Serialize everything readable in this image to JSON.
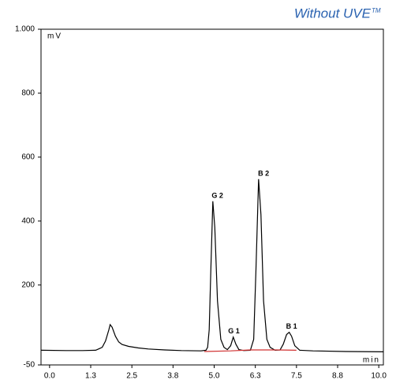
{
  "chart_data": {
    "type": "line",
    "title": "Without UVE",
    "title_mark": "TM",
    "y_label": "mV",
    "x_label": "min",
    "xlim": [
      -0.26,
      10.14
    ],
    "ylim": [
      -50,
      1000
    ],
    "xticks": [
      {
        "value": 0,
        "label": "0.0"
      },
      {
        "value": 1.25,
        "label": "1.3"
      },
      {
        "value": 2.5,
        "label": "2.5"
      },
      {
        "value": 3.75,
        "label": "3.8"
      },
      {
        "value": 5,
        "label": "5.0"
      },
      {
        "value": 6.25,
        "label": "6.3"
      },
      {
        "value": 7.5,
        "label": "7.5"
      },
      {
        "value": 8.75,
        "label": "8.8"
      },
      {
        "value": 10,
        "label": "10.0"
      }
    ],
    "yticks": [
      -50,
      200,
      400,
      600,
      800,
      {
        "value": 1000,
        "label": "1.000"
      }
    ],
    "series": [
      {
        "color": "#000000",
        "x": [
          -0.26,
          0.5,
          1.0,
          1.4,
          1.6,
          1.7,
          1.8,
          1.84,
          1.9,
          2.0,
          2.1,
          2.2,
          2.4,
          2.7,
          3.0,
          3.5,
          4.0,
          4.6,
          4.75,
          4.8,
          4.85,
          4.9,
          4.96,
          5.02,
          5.1,
          5.2,
          5.3,
          5.4,
          5.5,
          5.58,
          5.66,
          5.75,
          5.9,
          6.1,
          6.2,
          6.27,
          6.35,
          6.42,
          6.5,
          6.6,
          6.7,
          6.85,
          7.0,
          7.1,
          7.2,
          7.28,
          7.35,
          7.45,
          7.6,
          8.0,
          9.0,
          10.14
        ],
        "values": [
          -4,
          -5,
          -5,
          -4,
          5,
          25,
          60,
          76,
          68,
          40,
          22,
          14,
          8,
          3,
          0,
          -3,
          -5,
          -6,
          -4,
          5,
          60,
          250,
          462,
          380,
          150,
          30,
          5,
          -2,
          10,
          37,
          15,
          -2,
          -5,
          -4,
          30,
          250,
          531,
          420,
          150,
          30,
          5,
          -4,
          -3,
          15,
          45,
          52,
          40,
          10,
          -4,
          -6,
          -8,
          -9
        ]
      },
      {
        "color": "#d03030",
        "x": [
          4.7,
          5.5,
          6.1,
          6.9,
          7.5
        ],
        "values": [
          -8,
          -6,
          -3,
          -3,
          -4
        ]
      }
    ],
    "annotations": [
      {
        "text": "G 2",
        "x": 5.1,
        "y": 478
      },
      {
        "text": "G 1",
        "x": 5.6,
        "y": 55
      },
      {
        "text": "B 2",
        "x": 6.5,
        "y": 548
      },
      {
        "text": "B 1",
        "x": 7.35,
        "y": 70
      }
    ]
  }
}
